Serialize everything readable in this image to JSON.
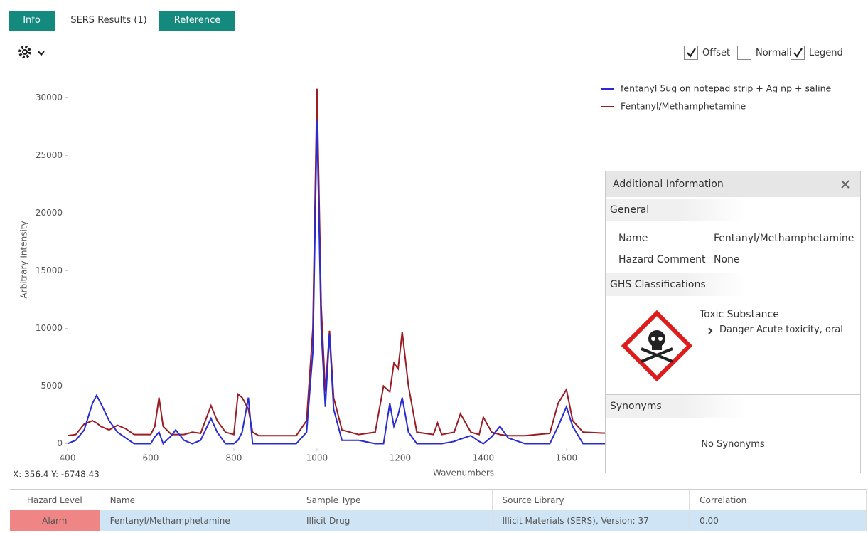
{
  "tabs": [
    "Info",
    "SERS Results (1)",
    "Reference"
  ],
  "toolbar": {
    "options": [
      {
        "label": "Offset",
        "checked": true
      },
      {
        "label": "Normalize",
        "checked": false
      },
      {
        "label": "Legend",
        "checked": true
      }
    ]
  },
  "chart_data": {
    "type": "line",
    "x_label": "Wavenumbers",
    "y_label": "Arbitrary Intensity",
    "legend": "upper right",
    "x": [
      400,
      420,
      440,
      460,
      470,
      480,
      500,
      520,
      540,
      560,
      600,
      610,
      620,
      630,
      650,
      660,
      680,
      700,
      720,
      745,
      760,
      780,
      800,
      810,
      820,
      835,
      845,
      860,
      950,
      975,
      990,
      1000,
      1010,
      1020,
      1030,
      1040,
      1060,
      1100,
      1140,
      1160,
      1175,
      1185,
      1195,
      1205,
      1220,
      1240,
      1280,
      1290,
      1300,
      1330,
      1345,
      1370,
      1390,
      1400,
      1420,
      1440,
      1460,
      1500,
      1560,
      1580,
      1600,
      1615,
      1640,
      1700
    ],
    "series": [
      {
        "name": "fentanyl 5ug on notepad strip + Ag np + saline",
        "color": "#2b2bd4",
        "values": [
          0,
          300,
          1200,
          3500,
          4200,
          3500,
          2000,
          1000,
          500,
          0,
          0,
          600,
          1000,
          0,
          700,
          1200,
          300,
          0,
          300,
          2200,
          1000,
          0,
          0,
          300,
          1000,
          4000,
          0,
          0,
          0,
          1000,
          8000,
          28000,
          10000,
          3200,
          9500,
          3000,
          300,
          300,
          0,
          0,
          3500,
          1500,
          2500,
          4000,
          1000,
          0,
          0,
          0,
          0,
          200,
          400,
          700,
          200,
          0,
          600,
          1500,
          500,
          0,
          0,
          1500,
          3200,
          1500,
          0,
          0
        ]
      },
      {
        "name": "Fentanyl/Methamphetamine",
        "color": "#9b1c22",
        "values": [
          700,
          800,
          1700,
          2000,
          1800,
          1500,
          1200,
          1600,
          1300,
          800,
          800,
          1500,
          4000,
          1500,
          800,
          800,
          800,
          1000,
          900,
          3300,
          2000,
          1000,
          800,
          4300,
          4000,
          3000,
          1000,
          700,
          700,
          2000,
          10000,
          30800,
          12000,
          4500,
          9800,
          4000,
          1200,
          800,
          1000,
          5000,
          4500,
          7000,
          6500,
          9700,
          5000,
          1000,
          800,
          1800,
          800,
          1000,
          2600,
          1000,
          800,
          2300,
          1000,
          800,
          700,
          700,
          900,
          3500,
          4700,
          2000,
          1000,
          900
        ]
      }
    ],
    "xlim": [
      400,
      2315
    ],
    "xticks": [
      400,
      600,
      800,
      1000,
      1200,
      1400,
      1600
    ],
    "ylim": [
      -400,
      31700
    ],
    "yticks": [
      0,
      5000,
      10000,
      15000,
      20000,
      25000,
      30000
    ],
    "grid": false
  },
  "cursor_readout": "X: 356.4   Y: -6748.43",
  "panel": {
    "title": "Additional Information",
    "general": {
      "heading": "General",
      "fields": [
        [
          "Name",
          "Fentanyl/Methamphetamine"
        ],
        [
          "Hazard Comment",
          "None"
        ]
      ]
    },
    "ghs": {
      "heading": "GHS Classifications",
      "class": "Toxic Substance",
      "detail": "Danger Acute toxicity, oral"
    },
    "synonyms": {
      "heading": "Synonyms",
      "text": "No Synonyms"
    }
  },
  "table": {
    "headers": [
      "Hazard Level",
      "Name",
      "Sample Type",
      "Source Library",
      "Correlation"
    ],
    "rows": [
      [
        "Alarm",
        "Fentanyl/Methamphetamine",
        "Illicit Drug",
        "Illicit Materials (SERS), Version: 37",
        "0.00"
      ]
    ]
  }
}
